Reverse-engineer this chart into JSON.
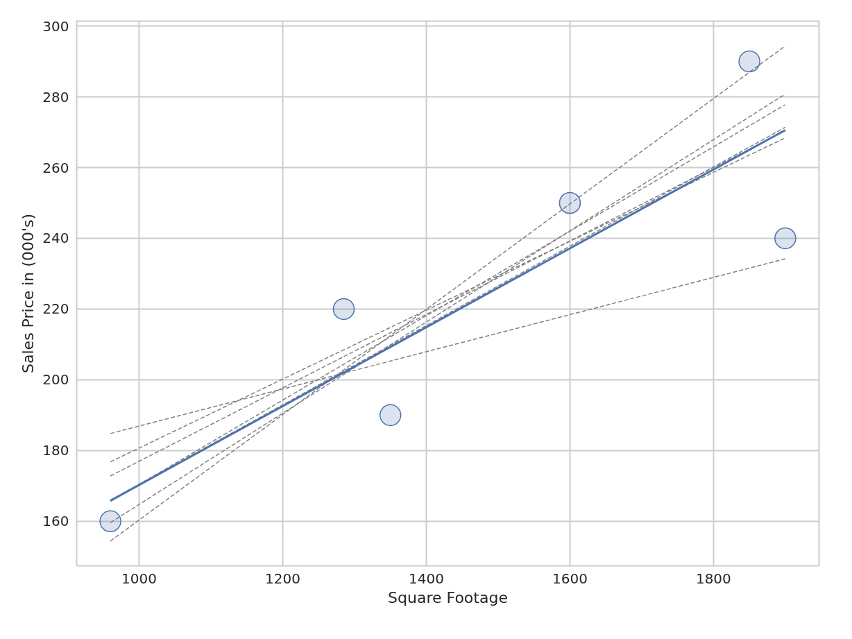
{
  "chart_data": {
    "type": "scatter",
    "xlabel": "Square Footage",
    "ylabel": "Sales Price in (000's)",
    "xlim": [
      913,
      1947
    ],
    "ylim": [
      147.4,
      301.4
    ],
    "xticks": [
      1000,
      1200,
      1400,
      1600,
      1800
    ],
    "yticks": [
      160,
      180,
      200,
      220,
      240,
      260,
      280,
      300
    ],
    "grid": true,
    "series": [
      {
        "type": "line",
        "color": "#808080",
        "line_style": "dashed",
        "x": [
          960,
          1900
        ],
        "values": [
          184.8,
          234.2
        ]
      },
      {
        "type": "line",
        "color": "#808080",
        "line_style": "dashed",
        "x": [
          960,
          1900
        ],
        "values": [
          176.8,
          268.4
        ]
      },
      {
        "type": "line",
        "color": "#808080",
        "line_style": "dashed",
        "x": [
          960,
          1900
        ],
        "values": [
          172.8,
          270.4
        ]
      },
      {
        "type": "line",
        "color": "#808080",
        "line_style": "dashed",
        "x": [
          960,
          1900
        ],
        "values": [
          166,
          271.4
        ]
      },
      {
        "type": "line",
        "color": "#808080",
        "line_style": "dashed",
        "x": [
          960,
          1900
        ],
        "values": [
          165.6,
          277.8
        ]
      },
      {
        "type": "line",
        "color": "#808080",
        "line_style": "dashed",
        "x": [
          960,
          1900
        ],
        "values": [
          159.6,
          280.8
        ]
      },
      {
        "type": "line",
        "color": "#808080",
        "line_style": "dashed",
        "x": [
          960,
          1900
        ],
        "values": [
          154.4,
          294.4
        ]
      },
      {
        "type": "line",
        "color": "#4c72b0",
        "line_style": "solid",
        "x": [
          960,
          1900
        ],
        "values": [
          165.8,
          270.6
        ]
      },
      {
        "type": "scatter",
        "color": "#4c72b0",
        "marker": "circle",
        "x": [
          960,
          1285,
          1350,
          1600,
          1850,
          1900
        ],
        "values": [
          160,
          220,
          190,
          250,
          290,
          240
        ]
      }
    ]
  }
}
